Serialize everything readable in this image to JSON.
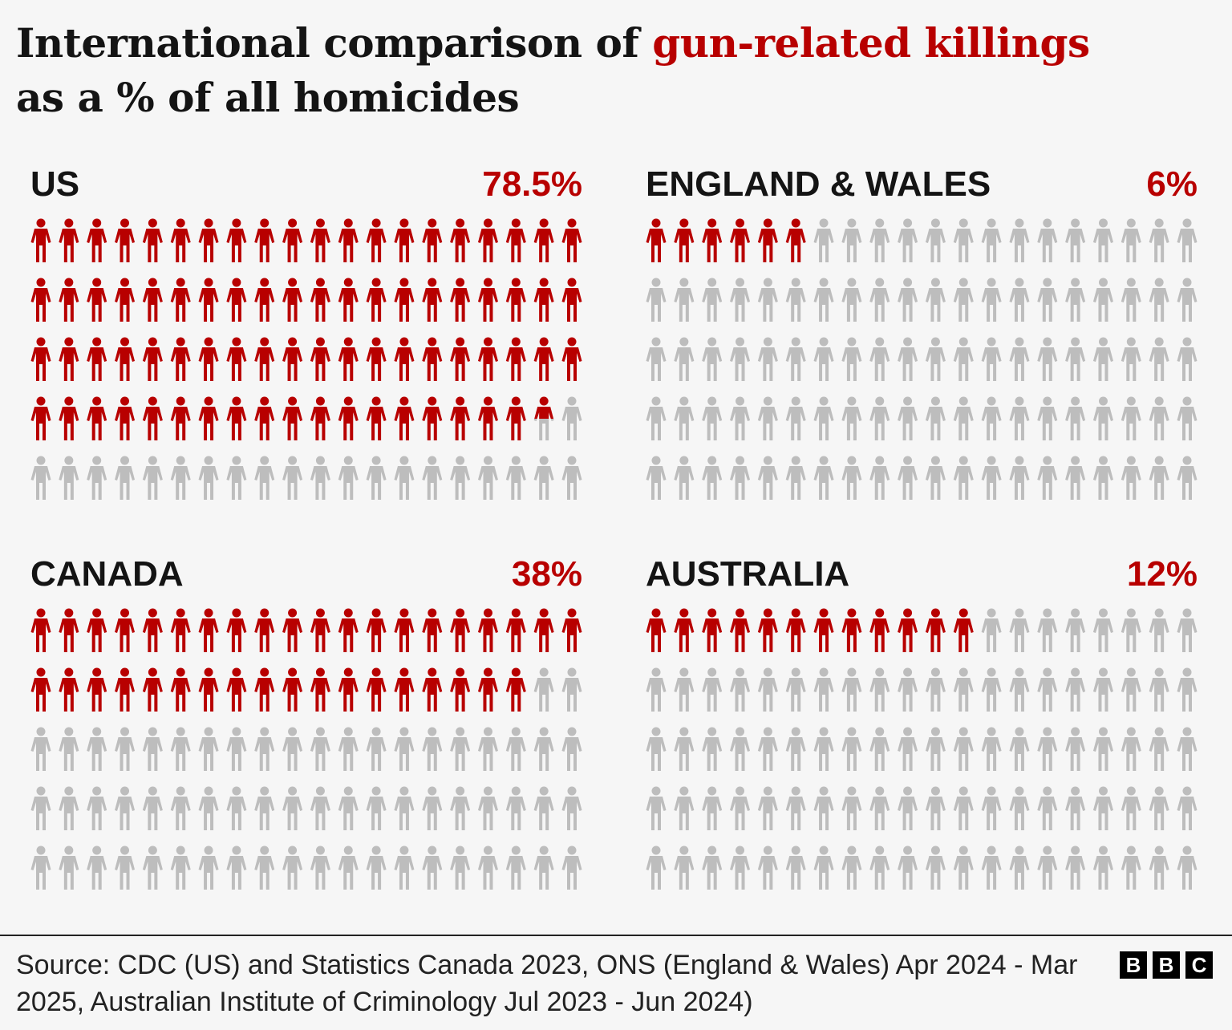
{
  "title": {
    "part1": "International comparison of ",
    "highlight": "gun-related killings",
    "part2": "as a % of all homicides"
  },
  "colors": {
    "highlight": "#b80000",
    "base": "#bdbdbd"
  },
  "chart_data": {
    "type": "pictogram",
    "icon": "person-icon",
    "icons_per_panel": 100,
    "grid": {
      "columns": 20,
      "rows": 5
    },
    "panels": [
      {
        "name": "US",
        "label": "78.5%",
        "value": 78.5
      },
      {
        "name": "ENGLAND & WALES",
        "label": "6%",
        "value": 6
      },
      {
        "name": "CANADA",
        "label": "38%",
        "value": 38
      },
      {
        "name": "AUSTRALIA",
        "label": "12%",
        "value": 12
      }
    ]
  },
  "footer": {
    "source": "Source: CDC (US) and Statistics Canada 2023, ONS (England & Wales) Apr 2024 - Mar 2025, Australian Institute of Criminology Jul 2023 - Jun 2024)",
    "logo": [
      "B",
      "B",
      "C"
    ]
  }
}
